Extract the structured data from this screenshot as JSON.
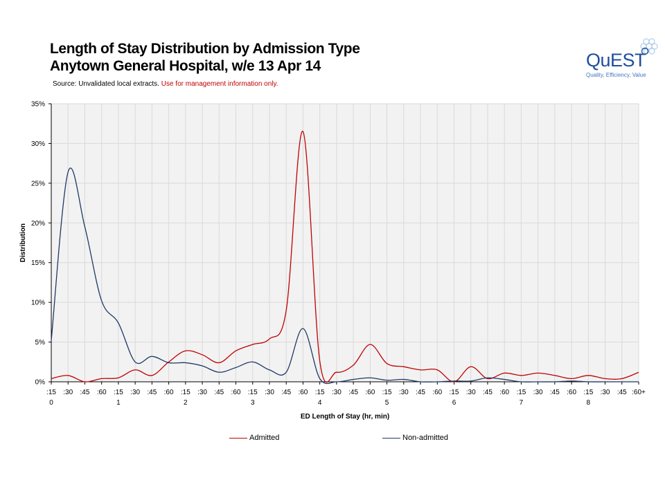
{
  "header": {
    "title_line1": "Length of Stay Distribution by Admission Type",
    "title_line2": "Anytown General Hospital, w/e 13 Apr 14",
    "source_label": "Source: Unvalidated local extracts.",
    "source_warning": "Use for management information only."
  },
  "logo": {
    "name": "QuEST",
    "tagline": "Quality, Efficiency, Value",
    "icon": "bubbles-icon"
  },
  "colors": {
    "admitted": "#c00000",
    "non_admitted": "#1f3864",
    "plot_bg": "#f2f2f2",
    "grid": "#d9d9d9"
  },
  "chart_data": {
    "type": "line",
    "title": "Length of Stay Distribution by Admission Type",
    "xlabel": "ED Length of Stay (hr, min)",
    "ylabel": "Distribution",
    "ylim": [
      0,
      35
    ],
    "ytick_labels": [
      "0%",
      "5%",
      "10%",
      "15%",
      "20%",
      "25%",
      "30%",
      "35%"
    ],
    "categories": [
      ":15",
      ":30",
      ":45",
      ":60",
      ":15",
      ":30",
      ":45",
      ":60",
      ":15",
      ":30",
      ":45",
      ":60",
      ":15",
      ":30",
      ":45",
      ":60",
      ":15",
      ":30",
      ":45",
      ":60",
      ":15",
      ":30",
      ":45",
      ":60",
      ":15",
      ":30",
      ":45",
      ":60",
      ":15",
      ":30",
      ":45",
      ":60",
      ":15",
      ":30",
      ":45",
      ":60+"
    ],
    "hour_labels": [
      "0",
      "1",
      "2",
      "3",
      "4",
      "5",
      "6",
      "7",
      "8"
    ],
    "grid": true,
    "legend_position": "bottom",
    "series": [
      {
        "name": "Admitted",
        "values": [
          0.4,
          0.8,
          0.0,
          0.4,
          0.5,
          1.5,
          0.8,
          2.5,
          3.9,
          3.4,
          2.4,
          3.9,
          4.7,
          5.4,
          9.0,
          31.5,
          2.6,
          1.2,
          2.1,
          4.7,
          2.3,
          1.9,
          1.5,
          1.5,
          0.0,
          1.9,
          0.4,
          1.1,
          0.8,
          1.1,
          0.8,
          0.4,
          0.8,
          0.4,
          0.4,
          1.2
        ]
      },
      {
        "name": "Non-admitted",
        "values": [
          5.2,
          26.4,
          19.5,
          10.2,
          7.4,
          2.5,
          3.2,
          2.4,
          2.4,
          2.0,
          1.2,
          1.8,
          2.5,
          1.5,
          1.2,
          6.7,
          0.4,
          0.0,
          0.3,
          0.5,
          0.2,
          0.3,
          0.0,
          0.0,
          0.1,
          0.1,
          0.5,
          0.3,
          0.0,
          0.0,
          0.0,
          0.1,
          0.0,
          0.0,
          0.0,
          0.0
        ]
      }
    ]
  }
}
